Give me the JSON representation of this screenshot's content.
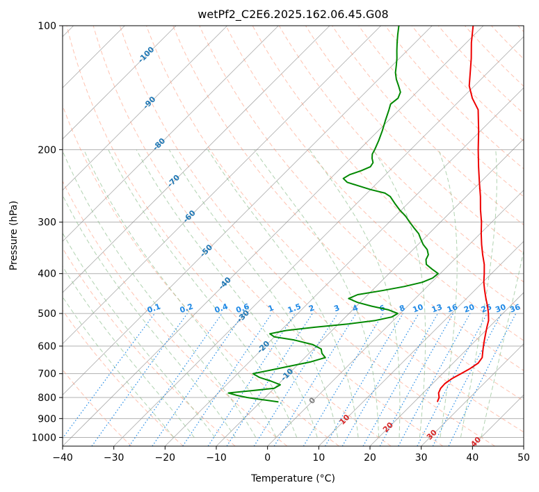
{
  "chart_data": {
    "type": "line",
    "title": "wetPf2_C2E6.2025.162.06.45.G08",
    "xlabel": "Temperature (°C)",
    "ylabel": "Pressure (hPa)",
    "xlim": [
      -40,
      50
    ],
    "ylim": [
      1050,
      100
    ],
    "y_scale": "log",
    "skew_t": true,
    "x_ticks": [
      -40,
      -30,
      -20,
      -10,
      0,
      10,
      20,
      30,
      40,
      50
    ],
    "y_ticks": [
      100,
      200,
      300,
      400,
      500,
      600,
      700,
      800,
      900,
      1000
    ],
    "grid": true,
    "series": [
      {
        "color": "#ee0000",
        "points": [
          [
            820,
            24.5
          ],
          [
            800,
            24.0
          ],
          [
            780,
            23.0
          ],
          [
            760,
            22.5
          ],
          [
            740,
            22.4
          ],
          [
            720,
            22.8
          ],
          [
            700,
            23.6
          ],
          [
            680,
            24.4
          ],
          [
            660,
            24.9
          ],
          [
            640,
            24.6
          ],
          [
            620,
            23.6
          ],
          [
            600,
            22.6
          ],
          [
            580,
            21.6
          ],
          [
            560,
            20.6
          ],
          [
            540,
            19.6
          ],
          [
            520,
            18.6
          ],
          [
            500,
            17.2
          ],
          [
            480,
            15.6
          ],
          [
            460,
            13.8
          ],
          [
            440,
            12.0
          ],
          [
            420,
            10.2
          ],
          [
            400,
            8.6
          ],
          [
            380,
            6.8
          ],
          [
            360,
            4.6
          ],
          [
            340,
            2.4
          ],
          [
            320,
            0.2
          ],
          [
            300,
            -2.0
          ],
          [
            280,
            -4.6
          ],
          [
            260,
            -7.2
          ],
          [
            240,
            -10.2
          ],
          [
            220,
            -13.4
          ],
          [
            200,
            -16.8
          ],
          [
            180,
            -20.4
          ],
          [
            160,
            -24.6
          ],
          [
            150,
            -28.0
          ],
          [
            140,
            -31.0
          ],
          [
            130,
            -33.4
          ],
          [
            120,
            -36.0
          ],
          [
            110,
            -39.0
          ],
          [
            100,
            -42.0
          ]
        ]
      },
      {
        "color": "#008800",
        "points": [
          [
            820,
            -6.5
          ],
          [
            810,
            -10.0
          ],
          [
            800,
            -13.5
          ],
          [
            790,
            -16.0
          ],
          [
            780,
            -18.0
          ],
          [
            770,
            -14.0
          ],
          [
            760,
            -10.0
          ],
          [
            745,
            -9.5
          ],
          [
            730,
            -12.0
          ],
          [
            715,
            -15.0
          ],
          [
            700,
            -17.0
          ],
          [
            685,
            -14.0
          ],
          [
            670,
            -11.0
          ],
          [
            655,
            -8.0
          ],
          [
            640,
            -6.0
          ],
          [
            625,
            -7.5
          ],
          [
            610,
            -8.5
          ],
          [
            595,
            -11.0
          ],
          [
            580,
            -15.5
          ],
          [
            570,
            -20.0
          ],
          [
            560,
            -21.5
          ],
          [
            550,
            -19.0
          ],
          [
            540,
            -14.0
          ],
          [
            530,
            -8.0
          ],
          [
            520,
            -3.5
          ],
          [
            510,
            -1.0
          ],
          [
            500,
            -0.5
          ],
          [
            490,
            -3.0
          ],
          [
            480,
            -7.0
          ],
          [
            470,
            -10.5
          ],
          [
            460,
            -13.0
          ],
          [
            450,
            -12.0
          ],
          [
            440,
            -8.0
          ],
          [
            430,
            -4.5
          ],
          [
            420,
            -1.8
          ],
          [
            410,
            -0.6
          ],
          [
            400,
            -0.4
          ],
          [
            390,
            -2.5
          ],
          [
            380,
            -4.5
          ],
          [
            370,
            -5.5
          ],
          [
            360,
            -6.0
          ],
          [
            350,
            -7.2
          ],
          [
            340,
            -9.0
          ],
          [
            330,
            -10.5
          ],
          [
            320,
            -12.0
          ],
          [
            310,
            -14.0
          ],
          [
            300,
            -16.0
          ],
          [
            290,
            -18.0
          ],
          [
            280,
            -20.4
          ],
          [
            270,
            -22.6
          ],
          [
            260,
            -24.8
          ],
          [
            255,
            -26.5
          ],
          [
            250,
            -30.0
          ],
          [
            245,
            -33.0
          ],
          [
            240,
            -36.0
          ],
          [
            235,
            -37.5
          ],
          [
            230,
            -37.0
          ],
          [
            225,
            -35.5
          ],
          [
            220,
            -34.5
          ],
          [
            215,
            -34.8
          ],
          [
            210,
            -35.8
          ],
          [
            205,
            -36.6
          ],
          [
            200,
            -37.0
          ],
          [
            190,
            -38.0
          ],
          [
            180,
            -39.2
          ],
          [
            170,
            -40.6
          ],
          [
            160,
            -42.0
          ],
          [
            155,
            -42.8
          ],
          [
            150,
            -42.5
          ],
          [
            145,
            -43.2
          ],
          [
            140,
            -44.8
          ],
          [
            135,
            -46.5
          ],
          [
            130,
            -48.0
          ],
          [
            125,
            -49.2
          ],
          [
            120,
            -50.5
          ],
          [
            115,
            -52.0
          ],
          [
            110,
            -53.5
          ],
          [
            105,
            -55.0
          ],
          [
            100,
            -56.5
          ]
        ]
      }
    ],
    "isotherm_labels": [
      "-100",
      "-90",
      "-80",
      "-70",
      "-60",
      "-50",
      "-40",
      "-30",
      "-20",
      "-10",
      "0",
      "10",
      "20",
      "30",
      "40"
    ],
    "mixing_ratio_labels": [
      "0.1",
      "0.2",
      "0.4",
      "0.6",
      "1",
      "1.5",
      "2",
      "3",
      "4",
      "6",
      "8",
      "10",
      "13",
      "16",
      "20",
      "25",
      "30",
      "36"
    ],
    "colors": {
      "dry_adiabat": "#ff9070",
      "moist_adiabat": "#8fbf8f",
      "mixing_ratio": "#1e88e5",
      "isotherm": "#888888",
      "isotherm_label_cold": "#1f77b4",
      "isotherm_label_zero": "#808080",
      "isotherm_label_warm": "#d62728",
      "special": "#c8a27a"
    }
  }
}
